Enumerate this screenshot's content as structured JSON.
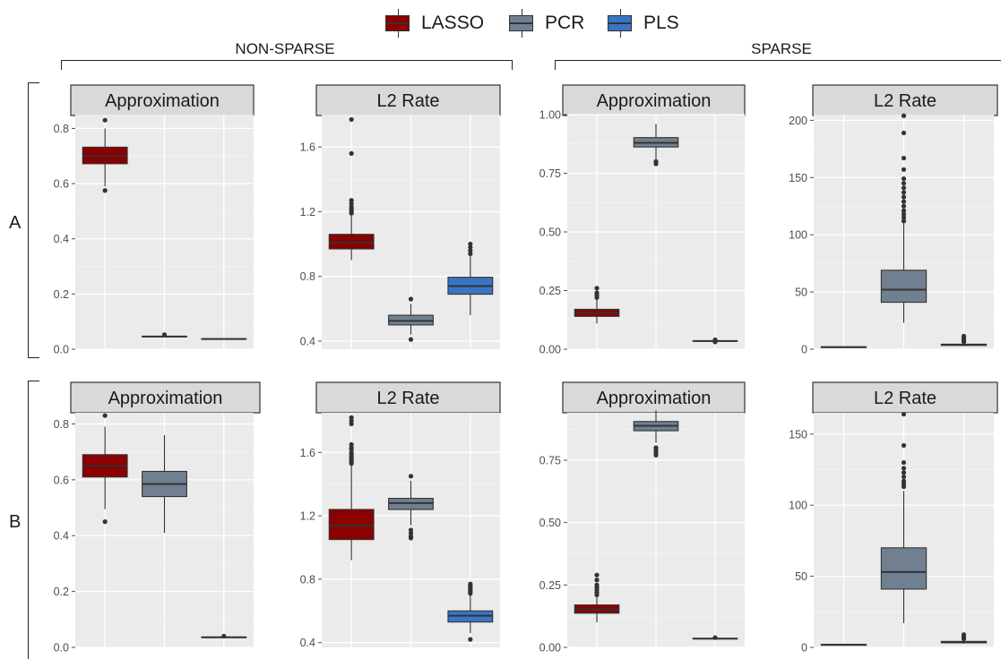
{
  "legend": {
    "items": [
      {
        "label": "LASSO",
        "color": "#8B0000"
      },
      {
        "label": "PCR",
        "color": "#708090"
      },
      {
        "label": "PLS",
        "color": "#3A75C4"
      }
    ]
  },
  "group_labels": {
    "non_sparse": "NON-SPARSE",
    "sparse": "SPARSE"
  },
  "row_labels": {
    "a": "A",
    "b": "B"
  },
  "chart_data": [
    {
      "type": "box",
      "row": "A",
      "group": "NON-SPARSE",
      "title": "Approximation",
      "ylim": [
        0,
        0.85
      ],
      "yticks": [
        0.0,
        0.2,
        0.4,
        0.6,
        0.8
      ],
      "ytick_labels": [
        "0.0",
        "0.2",
        "0.4",
        "0.6",
        "0.8"
      ],
      "series": [
        {
          "name": "LASSO",
          "min": 0.59,
          "q1": 0.672,
          "median": 0.7,
          "q3": 0.732,
          "max": 0.8,
          "outliers": [
            0.83,
            0.575
          ]
        },
        {
          "name": "PCR",
          "min": 0.044,
          "q1": 0.045,
          "median": 0.046,
          "q3": 0.047,
          "max": 0.048,
          "outliers": [
            0.053
          ]
        },
        {
          "name": "PLS",
          "min": 0.035,
          "q1": 0.036,
          "median": 0.037,
          "q3": 0.038,
          "max": 0.039,
          "outliers": []
        }
      ]
    },
    {
      "type": "box",
      "row": "A",
      "group": "NON-SPARSE",
      "title": "L2 Rate",
      "ylim": [
        0.35,
        1.8
      ],
      "yticks": [
        0.4,
        0.8,
        1.2,
        1.6
      ],
      "ytick_labels": [
        "0.4",
        "0.8",
        "1.2",
        "1.6"
      ],
      "series": [
        {
          "name": "LASSO",
          "min": 0.9,
          "q1": 0.97,
          "median": 1.01,
          "q3": 1.06,
          "max": 1.18,
          "outliers": [
            1.19,
            1.2,
            1.21,
            1.22,
            1.23,
            1.25,
            1.27,
            1.56,
            1.77
          ]
        },
        {
          "name": "PCR",
          "min": 0.44,
          "q1": 0.5,
          "median": 0.525,
          "q3": 0.56,
          "max": 0.63,
          "outliers": [
            0.66,
            0.41
          ]
        },
        {
          "name": "PLS",
          "min": 0.56,
          "q1": 0.69,
          "median": 0.74,
          "q3": 0.795,
          "max": 0.93,
          "outliers": [
            0.94,
            0.96,
            0.98,
            1.0
          ]
        }
      ]
    },
    {
      "type": "box",
      "row": "A",
      "group": "SPARSE",
      "title": "Approximation",
      "ylim": [
        0,
        1.0
      ],
      "yticks": [
        0.0,
        0.25,
        0.5,
        0.75,
        1.0
      ],
      "ytick_labels": [
        "0.00",
        "0.25",
        "0.50",
        "0.75",
        "1.00"
      ],
      "series": [
        {
          "name": "LASSO",
          "min": 0.11,
          "q1": 0.14,
          "median": 0.155,
          "q3": 0.17,
          "max": 0.21,
          "outliers": [
            0.22,
            0.23,
            0.24,
            0.26
          ]
        },
        {
          "name": "PCR",
          "min": 0.81,
          "q1": 0.862,
          "median": 0.88,
          "q3": 0.902,
          "max": 0.96,
          "outliers": [
            0.79,
            0.8
          ]
        },
        {
          "name": "PLS",
          "min": 0.033,
          "q1": 0.034,
          "median": 0.035,
          "q3": 0.036,
          "max": 0.037,
          "outliers": [
            0.031,
            0.04
          ]
        }
      ]
    },
    {
      "type": "box",
      "row": "A",
      "group": "SPARSE",
      "title": "L2 Rate",
      "ylim": [
        0,
        205
      ],
      "yticks": [
        0,
        50,
        100,
        150,
        200
      ],
      "ytick_labels": [
        "0",
        "50",
        "100",
        "150",
        "200"
      ],
      "series": [
        {
          "name": "LASSO",
          "min": 1.2,
          "q1": 1.5,
          "median": 1.8,
          "q3": 2.1,
          "max": 2.4,
          "outliers": []
        },
        {
          "name": "PCR",
          "min": 23,
          "q1": 41,
          "median": 52,
          "q3": 69,
          "max": 110,
          "outliers": [
            112,
            115,
            118,
            121,
            125,
            129,
            133,
            137,
            141,
            145,
            149,
            157,
            167,
            189,
            204
          ]
        },
        {
          "name": "PLS",
          "min": 2.5,
          "q1": 3.3,
          "median": 3.8,
          "q3": 4.4,
          "max": 5.5,
          "outliers": [
            6.5,
            7.5,
            8.5,
            10,
            11.5
          ]
        }
      ]
    },
    {
      "type": "box",
      "row": "B",
      "group": "NON-SPARSE",
      "title": "Approximation",
      "ylim": [
        0,
        0.84
      ],
      "yticks": [
        0.0,
        0.2,
        0.4,
        0.6,
        0.8
      ],
      "ytick_labels": [
        "0.0",
        "0.2",
        "0.4",
        "0.6",
        "0.8"
      ],
      "series": [
        {
          "name": "LASSO",
          "min": 0.495,
          "q1": 0.61,
          "median": 0.65,
          "q3": 0.69,
          "max": 0.79,
          "outliers": [
            0.83,
            0.45
          ]
        },
        {
          "name": "PCR",
          "min": 0.41,
          "q1": 0.54,
          "median": 0.585,
          "q3": 0.63,
          "max": 0.76,
          "outliers": []
        },
        {
          "name": "PLS",
          "min": 0.034,
          "q1": 0.035,
          "median": 0.036,
          "q3": 0.037,
          "max": 0.038,
          "outliers": [
            0.04
          ]
        }
      ]
    },
    {
      "type": "box",
      "row": "B",
      "group": "NON-SPARSE",
      "title": "L2 Rate",
      "ylim": [
        0.37,
        1.85
      ],
      "yticks": [
        0.4,
        0.8,
        1.2,
        1.6
      ],
      "ytick_labels": [
        "0.4",
        "0.8",
        "1.2",
        "1.6"
      ],
      "series": [
        {
          "name": "LASSO",
          "min": 0.92,
          "q1": 1.05,
          "median": 1.14,
          "q3": 1.24,
          "max": 1.52,
          "outliers": [
            1.53,
            1.54,
            1.55,
            1.56,
            1.57,
            1.58,
            1.59,
            1.6,
            1.62,
            1.63,
            1.65,
            1.78,
            1.8,
            1.82
          ]
        },
        {
          "name": "PCR",
          "min": 1.14,
          "q1": 1.24,
          "median": 1.28,
          "q3": 1.31,
          "max": 1.42,
          "outliers": [
            1.45,
            1.11,
            1.09,
            1.07,
            1.06
          ]
        },
        {
          "name": "PLS",
          "min": 0.46,
          "q1": 0.53,
          "median": 0.57,
          "q3": 0.6,
          "max": 0.7,
          "outliers": [
            0.71,
            0.72,
            0.73,
            0.74,
            0.75,
            0.76,
            0.77,
            0.42
          ]
        }
      ]
    },
    {
      "type": "box",
      "row": "B",
      "group": "SPARSE",
      "title": "Approximation",
      "ylim": [
        0,
        0.94
      ],
      "yticks": [
        0.0,
        0.25,
        0.5,
        0.75
      ],
      "ytick_labels": [
        "0.00",
        "0.25",
        "0.50",
        "0.75"
      ],
      "series": [
        {
          "name": "LASSO",
          "min": 0.1,
          "q1": 0.137,
          "median": 0.152,
          "q3": 0.17,
          "max": 0.2,
          "outliers": [
            0.21,
            0.22,
            0.23,
            0.24,
            0.25,
            0.27,
            0.29
          ]
        },
        {
          "name": "PCR",
          "min": 0.82,
          "q1": 0.868,
          "median": 0.888,
          "q3": 0.905,
          "max": 0.95,
          "outliers": [
            0.77,
            0.78,
            0.79,
            0.8
          ]
        },
        {
          "name": "PLS",
          "min": 0.033,
          "q1": 0.034,
          "median": 0.035,
          "q3": 0.036,
          "max": 0.037,
          "outliers": [
            0.039
          ]
        }
      ]
    },
    {
      "type": "box",
      "row": "B",
      "group": "SPARSE",
      "title": "L2 Rate",
      "ylim": [
        0,
        165
      ],
      "yticks": [
        0,
        50,
        100,
        150
      ],
      "ytick_labels": [
        "0",
        "50",
        "100",
        "150"
      ],
      "series": [
        {
          "name": "LASSO",
          "min": 1.2,
          "q1": 1.5,
          "median": 1.8,
          "q3": 2.1,
          "max": 2.4,
          "outliers": []
        },
        {
          "name": "PCR",
          "min": 17,
          "q1": 41,
          "median": 53,
          "q3": 70,
          "max": 110,
          "outliers": [
            113,
            115,
            117,
            120,
            123,
            126,
            130,
            142,
            164
          ]
        },
        {
          "name": "PLS",
          "min": 2.5,
          "q1": 3.2,
          "median": 3.6,
          "q3": 4.2,
          "max": 5.2,
          "outliers": [
            6,
            7,
            8,
            9
          ]
        }
      ]
    }
  ]
}
